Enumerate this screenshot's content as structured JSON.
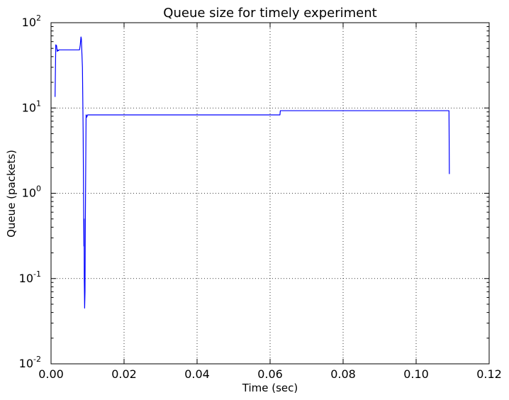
{
  "chart_data": {
    "type": "line",
    "title": "Queue size for timely experiment",
    "xlabel": "Time (sec)",
    "ylabel": "Queue (packets)",
    "xlim": [
      0.0,
      0.12
    ],
    "ylim": [
      0.01,
      100
    ],
    "yscale": "log",
    "grid": true,
    "x_ticks": [
      "0.00",
      "0.02",
      "0.04",
      "0.06",
      "0.08",
      "0.10",
      "0.12"
    ],
    "y_ticks": [
      {
        "base": "10",
        "exp": "-2"
      },
      {
        "base": "10",
        "exp": "-1"
      },
      {
        "base": "10",
        "exp": "0"
      },
      {
        "base": "10",
        "exp": "1"
      },
      {
        "base": "10",
        "exp": "2"
      }
    ],
    "series": [
      {
        "color": "#0000ff",
        "x": [
          0.0011,
          0.0013,
          0.0015,
          0.0017,
          0.0019,
          0.002,
          0.0022,
          0.004,
          0.006,
          0.0078,
          0.008,
          0.0082,
          0.0083,
          0.0084,
          0.0086,
          0.0088,
          0.0089,
          0.009,
          0.00902,
          0.00905,
          0.0091,
          0.00915,
          0.0092,
          0.0093,
          0.00935,
          0.0094,
          0.0096,
          0.0098,
          0.01,
          0.03,
          0.05,
          0.0627,
          0.0628,
          0.07,
          0.09,
          0.109,
          0.1091
        ],
        "y": [
          13.5,
          55,
          54,
          46,
          48,
          47,
          48,
          48,
          48,
          48,
          55,
          68,
          65,
          50,
          30,
          5,
          1.0,
          0.24,
          0.3,
          0.5,
          0.1,
          0.07,
          0.045,
          0.07,
          0.2,
          0.5,
          8.3,
          7.8,
          8.3,
          8.3,
          8.3,
          8.3,
          9.3,
          9.3,
          9.3,
          9.3,
          1.68
        ]
      }
    ]
  }
}
